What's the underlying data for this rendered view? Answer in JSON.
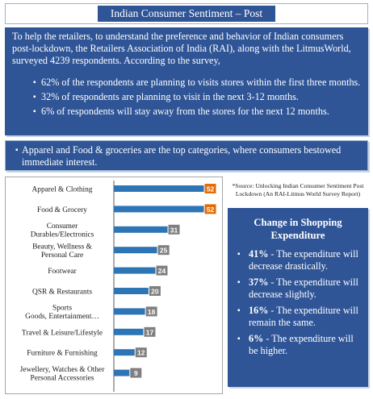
{
  "title": "Indian Consumer Sentiment – Post Lockdown",
  "intro": "To help the retailers,  to understand the preference and behavior of Indian consumers post-lockdown, the Retailers Association of India (RAI), along with the LitmusWorld, surveyed 4239 respondents. According to the survey,",
  "bullets": [
    "62% of the respondents are planning to visits stores within the first three months.",
    "32% of respondents are planning to visit in the next 3-12 months.",
    "6% of respondents will stay away from the stores for the next 12 months."
  ],
  "category_note": "Apparel and Food & groceries are the top categories, where consumers bestowed immediate interest.",
  "source": "*Source: Unlocking Indian Consumer Sentiment Post Lockdown (An RAI-Litmus World Survey Report)",
  "expenditure": {
    "title": "Change in Shopping Expenditure",
    "items": [
      {
        "pct": "41%",
        "text": " - The expenditure will decrease drastically."
      },
      {
        "pct": "37%",
        "text": " - The expenditure will decrease slightly."
      },
      {
        "pct": "16%",
        "text": " - The expenditure will remain the same."
      },
      {
        "pct": "6%",
        "text": " - The expenditure will be higher."
      }
    ]
  },
  "colors": {
    "panel": "#2f5597",
    "bar": "#2e75b6",
    "label_highlight": "#e36c09",
    "label_default": "#7f7f7f"
  },
  "chart_data": {
    "type": "bar",
    "orientation": "horizontal",
    "categories": [
      "Apparel & Clothing",
      "Food & Grocery",
      "Consumer Durables/Electronics",
      "Beauty, Wellness & Personal Care",
      "Footwear",
      "QSR & Restaurants",
      "Sports Goods, Entertainment…",
      "Travel & Leisure/Lifestyle",
      "Furniture & Furnishing",
      "Jewellery, Watches & Other Personal Accessories"
    ],
    "category_lines": [
      [
        "Apparel & Clothing"
      ],
      [
        "Food & Grocery"
      ],
      [
        "Consumer",
        "Durables/Electronics"
      ],
      [
        "Beauty, Wellness &",
        "Personal Care"
      ],
      [
        "Footwear"
      ],
      [
        "QSR & Restaurants"
      ],
      [
        "Sports",
        "Goods, Entertainment…"
      ],
      [
        "Travel & Leisure/Lifestyle"
      ],
      [
        "Furniture & Furnishing"
      ],
      [
        "Jewellery, Watches & Other",
        "Personal Accessories"
      ]
    ],
    "values": [
      52,
      52,
      31,
      25,
      24,
      20,
      18,
      17,
      12,
      9
    ],
    "highlight": [
      true,
      true,
      false,
      false,
      false,
      false,
      false,
      false,
      false,
      false
    ],
    "xlim": [
      0,
      55
    ],
    "grid": false,
    "legend": "none"
  }
}
